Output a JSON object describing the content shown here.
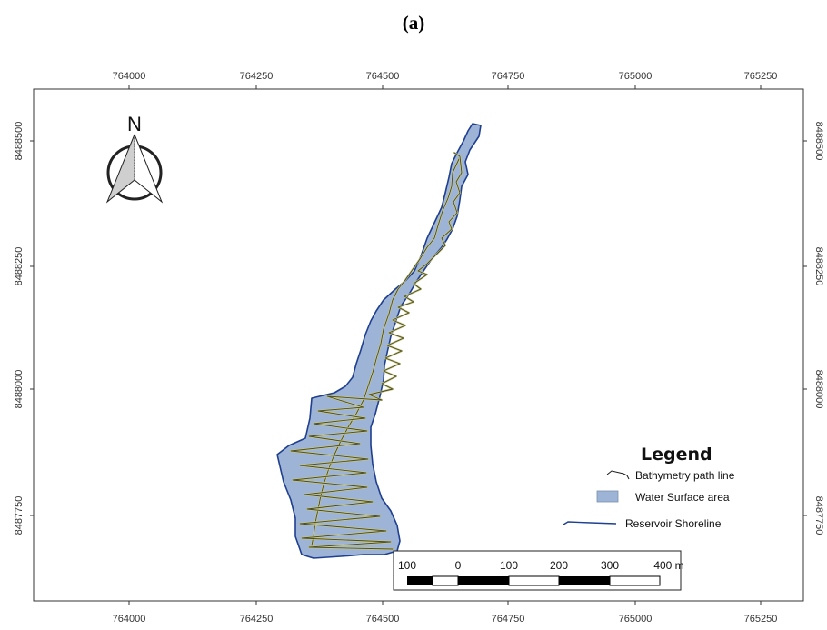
{
  "title": "(a)",
  "axes": {
    "x_ticks": [
      "764000",
      "764250",
      "764500",
      "764750",
      "765000",
      "765250"
    ],
    "y_ticks": [
      "8488500",
      "8488250",
      "8488000",
      "8487750"
    ]
  },
  "north_arrow": {
    "label": "N",
    "icon": "north-arrow-icon"
  },
  "legend": {
    "title": "Legend",
    "items": [
      {
        "label": "Bathymetry path line",
        "symbol": "line",
        "color": "#1a1a1a"
      },
      {
        "label": "Water Surface area",
        "symbol": "fill",
        "color": "#9db4d6"
      },
      {
        "label": "Reservoir Shoreline",
        "symbol": "line",
        "color": "#1f3f8f"
      }
    ]
  },
  "scale_bar": {
    "labels": [
      "100",
      "0",
      "100",
      "200",
      "300",
      "400 m"
    ]
  },
  "colors": {
    "water": "#9db4d6",
    "shoreline": "#1f3f8f",
    "path": "#4a4a1a",
    "path_highlight": "#c8c890"
  }
}
